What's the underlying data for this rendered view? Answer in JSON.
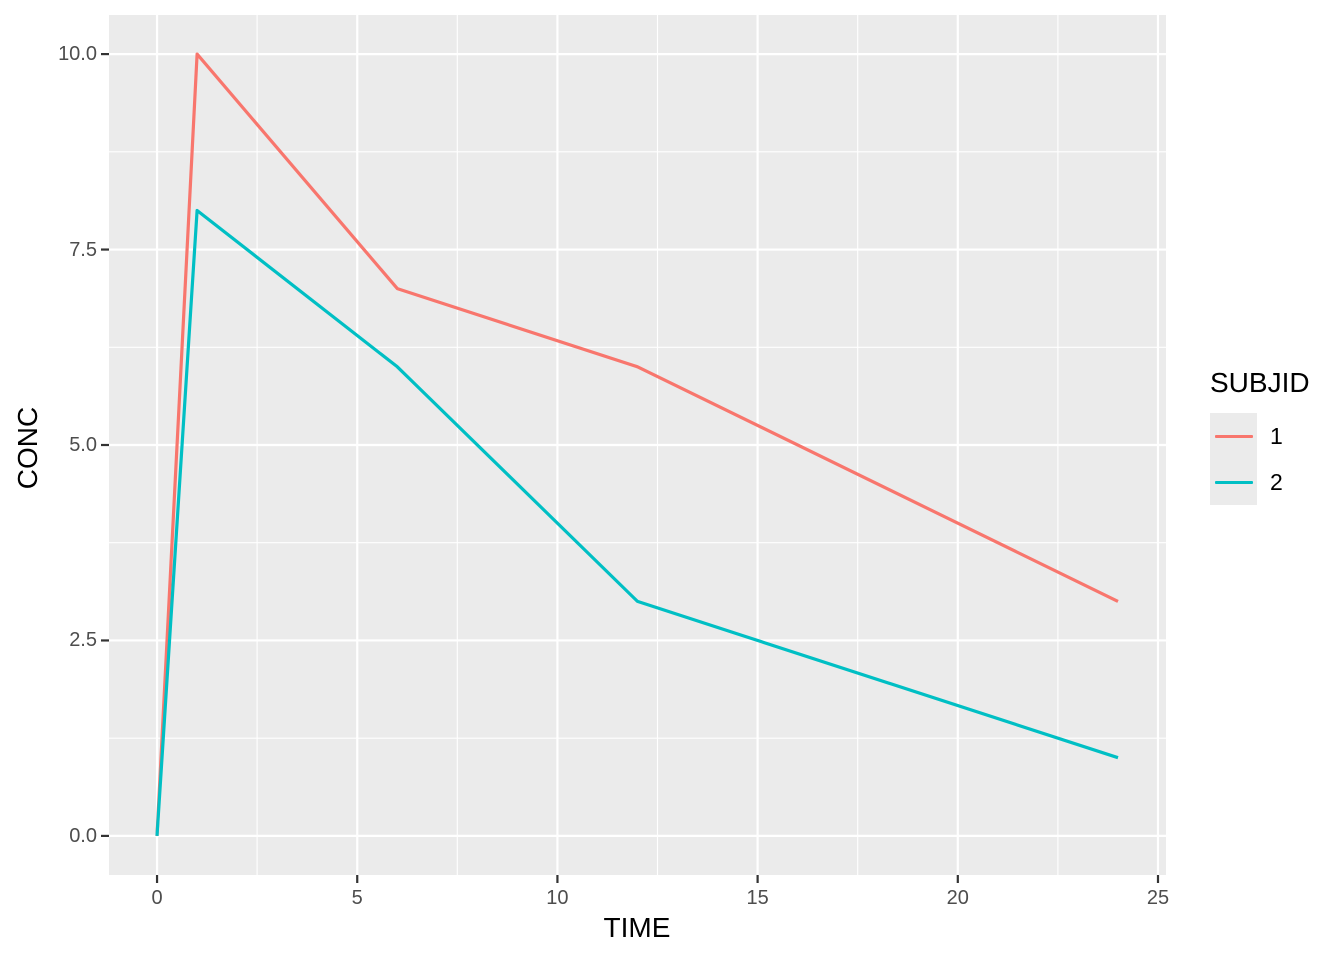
{
  "chart_data": {
    "type": "line",
    "title": "",
    "xlabel": "TIME",
    "ylabel": "CONC",
    "xlim": [
      -1.2,
      25.2
    ],
    "ylim": [
      -0.5,
      10.5
    ],
    "x_ticks": [
      0,
      5,
      10,
      15,
      20,
      25
    ],
    "x_tick_labels": [
      "0",
      "5",
      "10",
      "15",
      "20",
      "25"
    ],
    "x_minor_ticks": [
      2.5,
      7.5,
      12.5,
      17.5,
      22.5
    ],
    "y_ticks": [
      0,
      2.5,
      5,
      7.5,
      10
    ],
    "y_tick_labels": [
      "0.0",
      "2.5",
      "5.0",
      "7.5",
      "10.0"
    ],
    "y_minor_ticks": [
      1.25,
      3.75,
      6.25,
      8.75
    ],
    "grid": true,
    "panel_background": "#EBEBEB",
    "grid_color": "#FFFFFF",
    "tick_mark_color": "#333333",
    "axis_text_color": "#4D4D4D",
    "axis_title_color": "#000000",
    "series": [
      {
        "name": "1",
        "color": "#F8766D",
        "points": [
          [
            0,
            0
          ],
          [
            1,
            10
          ],
          [
            6,
            7
          ],
          [
            12,
            6
          ],
          [
            24,
            3
          ]
        ]
      },
      {
        "name": "2",
        "color": "#00BFC4",
        "points": [
          [
            0,
            0
          ],
          [
            1,
            8
          ],
          [
            6,
            6
          ],
          [
            12,
            3
          ],
          [
            24,
            1
          ]
        ]
      }
    ],
    "legend": {
      "title": "SUBJID",
      "position": "right",
      "key_fill": "#EBEBEB",
      "entries": [
        {
          "label": "1",
          "color": "#F8766D"
        },
        {
          "label": "2",
          "color": "#00BFC4"
        }
      ]
    }
  }
}
